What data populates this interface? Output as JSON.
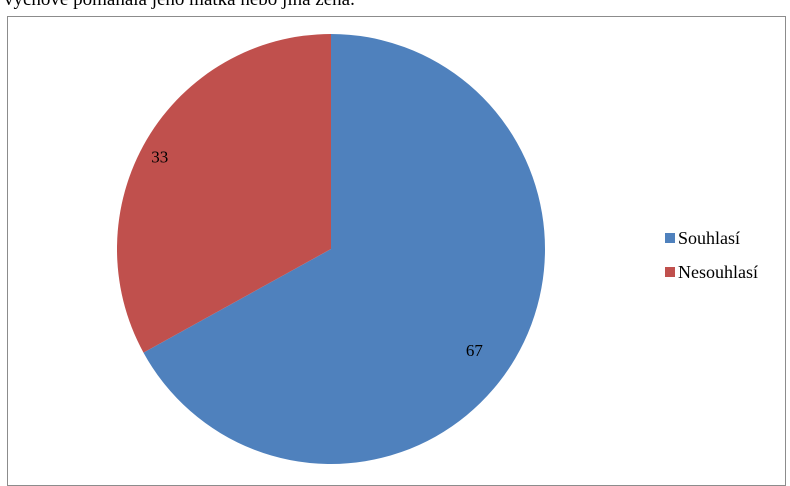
{
  "heading_fragment": "výchově pomáhala jeho matka nebo jiná žena.",
  "chart_data": {
    "type": "pie",
    "title": "",
    "categories": [
      "Souhlasí",
      "Nesouhlasí"
    ],
    "values": [
      67,
      33
    ],
    "data_labels": [
      "67",
      "33"
    ],
    "colors": [
      "#4f81bd",
      "#c0504d"
    ],
    "legend_position": "right",
    "start_angle": "top, clockwise"
  }
}
